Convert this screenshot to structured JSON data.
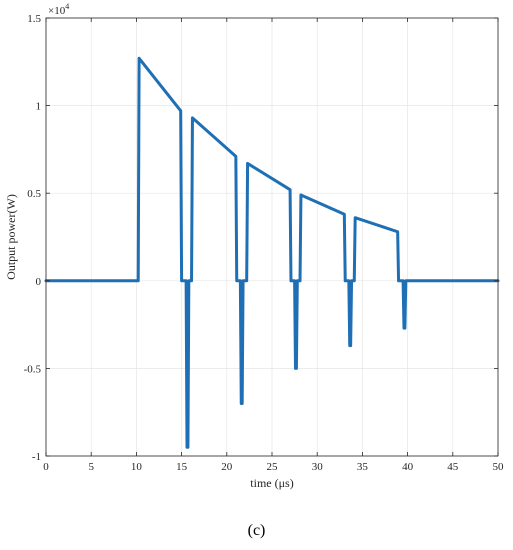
{
  "caption": "(c)",
  "chart_data": {
    "type": "line",
    "title": "",
    "xlabel": "time (μs)",
    "ylabel": "Output power(W)",
    "xlim": [
      0,
      50
    ],
    "ylim": [
      -10000,
      15000
    ],
    "exponent_base": "×10",
    "exponent_power": "4",
    "x_ticks": [
      0,
      5,
      10,
      15,
      20,
      25,
      30,
      35,
      40,
      45,
      50
    ],
    "x_tick_labels": [
      "0",
      "5",
      "10",
      "15",
      "20",
      "25",
      "30",
      "35",
      "40",
      "45",
      "50"
    ],
    "y_ticks": [
      -10000,
      -5000,
      0,
      5000,
      10000,
      15000
    ],
    "y_tick_labels": [
      "-1",
      "-0.5",
      "0",
      "0.5",
      "1",
      "1.5"
    ],
    "grid": true,
    "line_color": "#1f6fb4",
    "series": [
      {
        "x": [
          0,
          10.2,
          10.3,
          14.9,
          15.0,
          15.5,
          15.6,
          15.7,
          15.8,
          16.1,
          16.2,
          21.0,
          21.1,
          21.5,
          21.6,
          21.7,
          21.8,
          22.2,
          22.3,
          27.0,
          27.1,
          27.5,
          27.6,
          27.7,
          27.8,
          28.1,
          28.2,
          33.0,
          33.1,
          33.5,
          33.6,
          33.7,
          33.8,
          34.1,
          34.2,
          38.9,
          39.0,
          39.5,
          39.6,
          39.7,
          39.8,
          50
        ],
        "y": [
          0,
          0,
          12700,
          9700,
          0,
          0,
          -9500,
          -9500,
          0,
          0,
          9300,
          7100,
          0,
          0,
          -7000,
          -7000,
          0,
          0,
          6700,
          5200,
          0,
          0,
          -5000,
          -5000,
          0,
          0,
          4900,
          3800,
          0,
          0,
          -3700,
          -3700,
          0,
          0,
          3600,
          2800,
          0,
          0,
          -2700,
          -2700,
          0,
          0
        ]
      }
    ]
  }
}
